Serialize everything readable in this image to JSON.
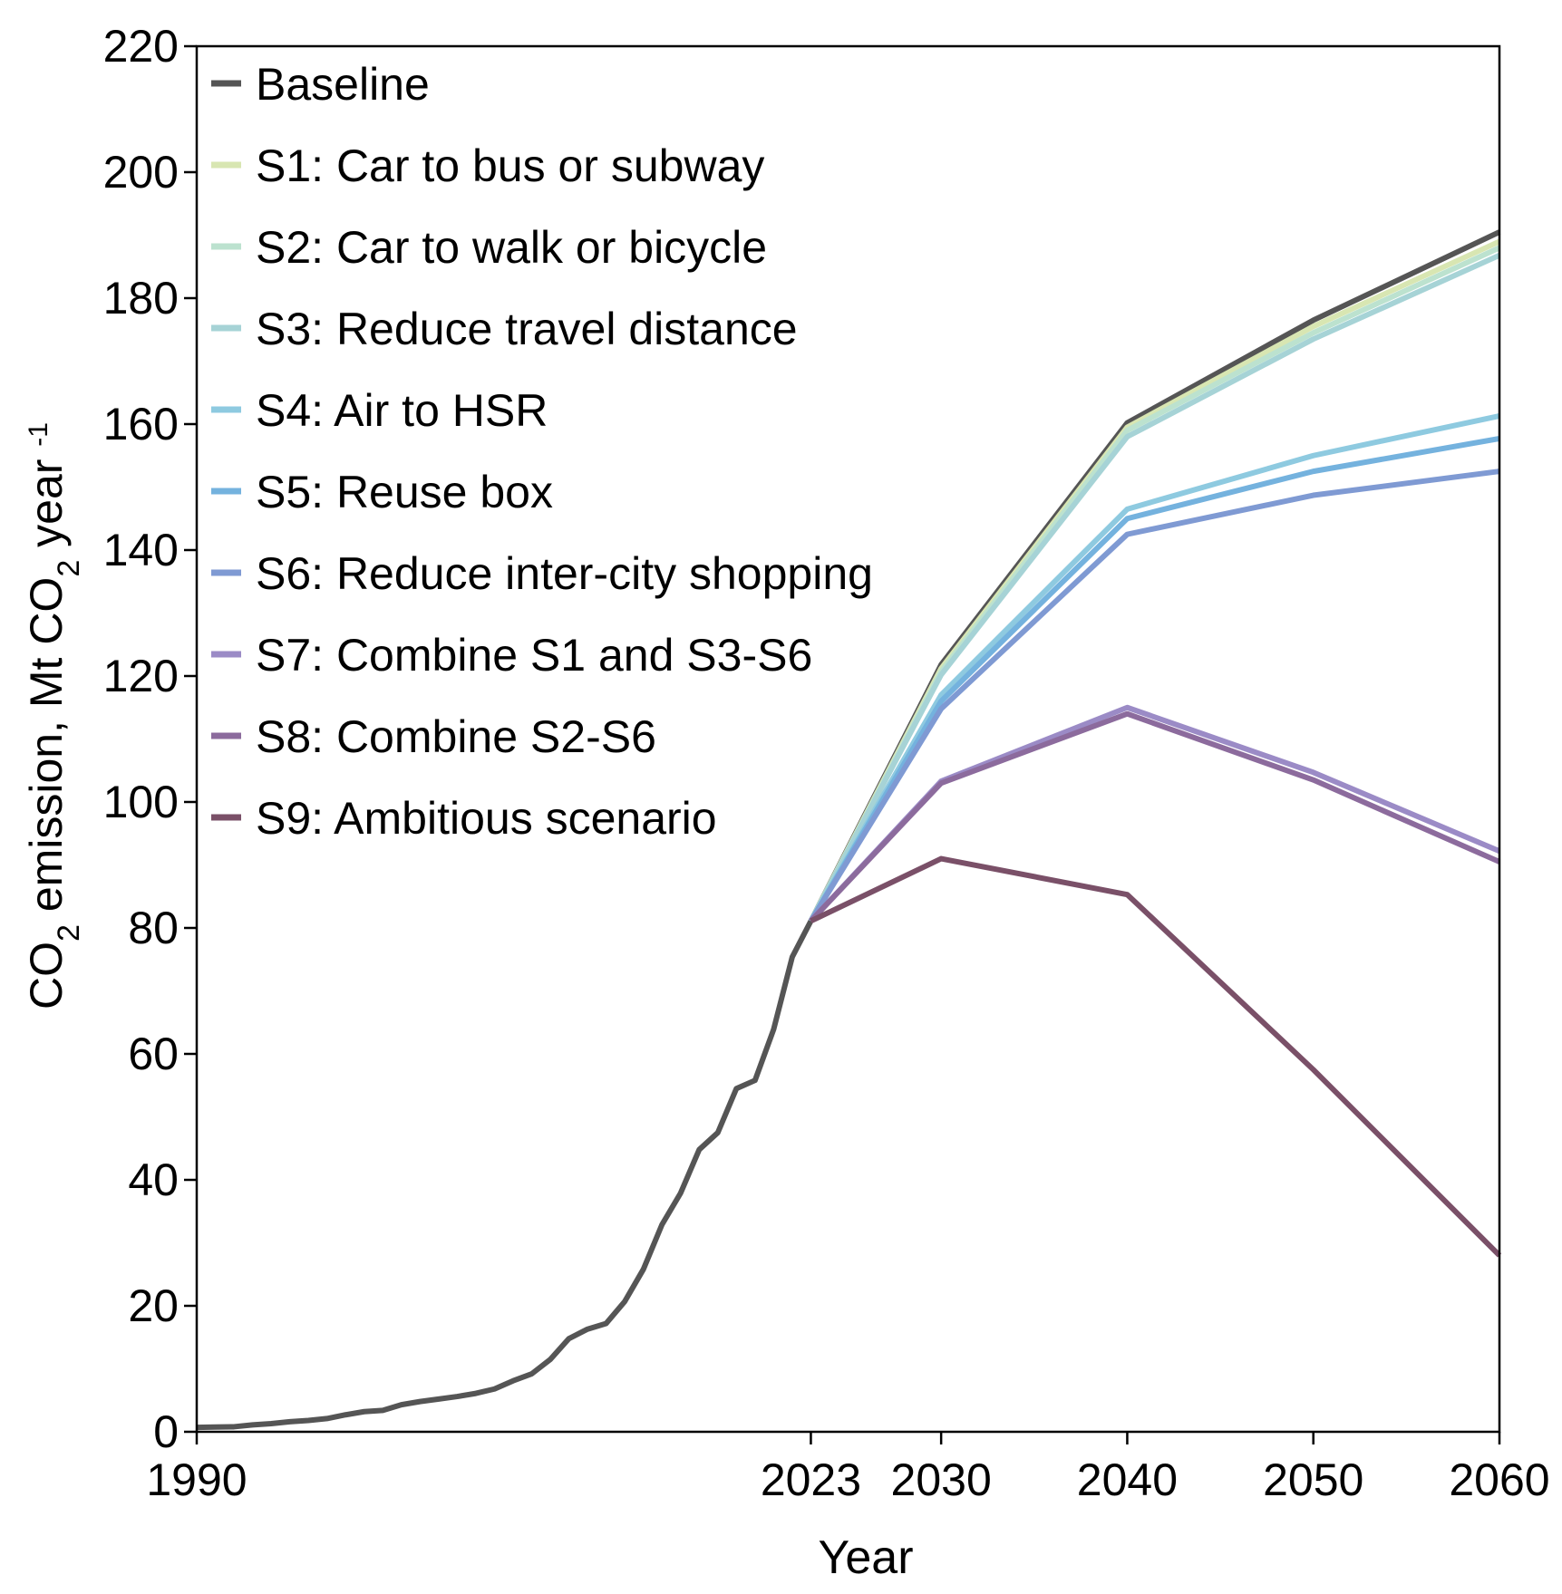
{
  "chart_data": {
    "type": "line",
    "xlabel": "Year",
    "ylabel": "CO2 emission, Mt CO2 year -1",
    "ylabel_parts": {
      "a": "CO",
      "sub1": "2",
      "b": " emission, Mt CO",
      "sub2": "2",
      "c": " year ",
      "sup": "-1"
    },
    "xlim": [
      1990,
      2060
    ],
    "ylim": [
      0,
      220
    ],
    "xticks": [
      1990,
      2023,
      2030,
      2040,
      2050,
      2060
    ],
    "yticks": [
      0,
      20,
      40,
      60,
      80,
      100,
      120,
      140,
      160,
      180,
      200,
      220
    ],
    "grid": false,
    "legend_position": "top-left",
    "historical": {
      "x": [
        1990,
        1991,
        1992,
        1993,
        1994,
        1995,
        1996,
        1997,
        1998,
        1999,
        2000,
        2001,
        2002,
        2003,
        2004,
        2005,
        2006,
        2007,
        2008,
        2009,
        2010,
        2011,
        2012,
        2013,
        2014,
        2015,
        2016,
        2017,
        2018,
        2019,
        2020,
        2021,
        2022,
        2023
      ],
      "y": [
        0.7,
        0.75,
        0.8,
        1.1,
        1.3,
        1.6,
        1.8,
        2.1,
        2.7,
        3.2,
        3.4,
        4.3,
        4.8,
        5.2,
        5.6,
        6.1,
        6.8,
        8.1,
        9.2,
        11.5,
        14.8,
        16.3,
        17.2,
        20.7,
        25.8,
        32.9,
        37.9,
        44.8,
        47.5,
        54.5,
        55.8,
        63.9,
        75.4,
        81.1
      ]
    },
    "projection_x": [
      2023,
      2030,
      2040,
      2050,
      2060
    ],
    "series": [
      {
        "name": "Baseline",
        "color": "#555555",
        "values": [
          81.1,
          121.8,
          160.2,
          176.5,
          190.5
        ]
      },
      {
        "name": "S1: Car to bus or subway",
        "color": "#d8e6b2",
        "values": [
          81.1,
          121.2,
          159.5,
          175.5,
          189.0
        ]
      },
      {
        "name": "S2: Car to walk or bicycle",
        "color": "#bce2cf",
        "values": [
          81.1,
          120.7,
          159.0,
          174.5,
          188.0
        ]
      },
      {
        "name": "S3: Reduce travel distance",
        "color": "#a6d3d6",
        "values": [
          81.1,
          120.2,
          158.0,
          173.5,
          186.8
        ]
      },
      {
        "name": "S4: Air to HSR",
        "color": "#8ecae0",
        "values": [
          81.1,
          117.0,
          146.5,
          155.0,
          161.3
        ]
      },
      {
        "name": "S5: Reuse box",
        "color": "#74b2de",
        "values": [
          81.1,
          116.0,
          145.0,
          152.5,
          157.7
        ]
      },
      {
        "name": "S6: Reduce inter-city shopping",
        "color": "#7f9ad3",
        "values": [
          81.1,
          114.8,
          142.5,
          148.7,
          152.5
        ]
      },
      {
        "name": "S7: Combine S1 and S3-S6",
        "color": "#9b8bc6",
        "values": [
          81.1,
          103.3,
          115.0,
          104.7,
          92.2
        ]
      },
      {
        "name": "S8: Combine S2-S6",
        "color": "#8c6b9d",
        "values": [
          81.1,
          103.0,
          114.0,
          103.5,
          90.5
        ]
      },
      {
        "name": "S9: Ambitious scenario",
        "color": "#7a5068",
        "values": [
          81.1,
          91.0,
          85.3,
          57.5,
          28.0
        ]
      }
    ]
  }
}
